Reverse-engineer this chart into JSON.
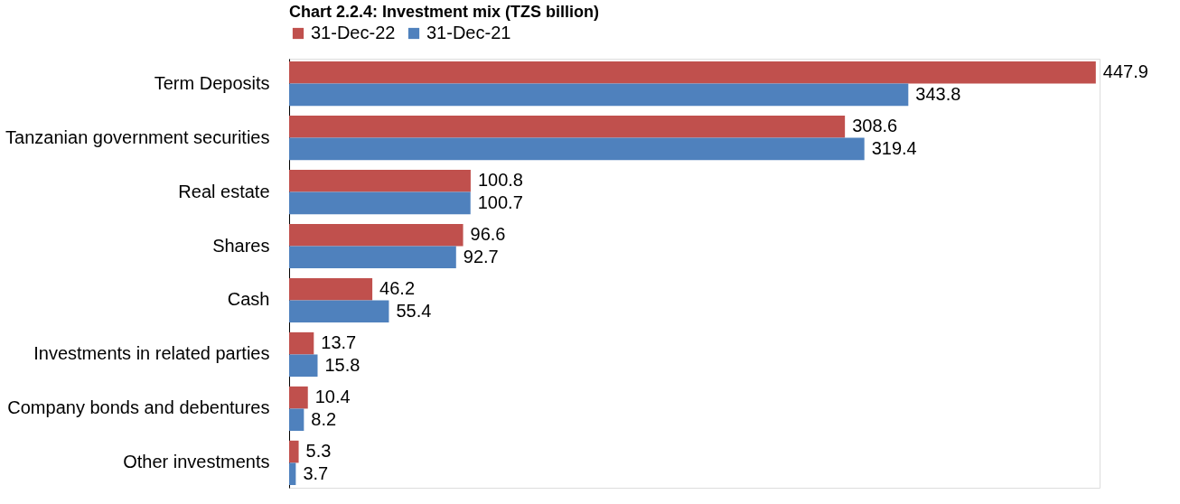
{
  "chart_data": {
    "type": "bar",
    "orientation": "horizontal",
    "title": "Chart 2.2.4: Investment mix (TZS billion)",
    "categories": [
      "Term Deposits",
      "Tanzanian government securities",
      "Real estate",
      "Shares",
      "Cash",
      "Investments in related parties",
      "Company bonds and debentures",
      "Other investments"
    ],
    "series": [
      {
        "name": "31-Dec-22",
        "color": "#c0504d",
        "values": [
          447.9,
          308.6,
          100.8,
          96.6,
          46.2,
          13.7,
          10.4,
          5.3
        ]
      },
      {
        "name": "31-Dec-21",
        "color": "#4f81bd",
        "values": [
          343.8,
          319.4,
          100.7,
          92.7,
          55.4,
          15.8,
          8.2,
          3.7
        ]
      }
    ],
    "data_labels": true,
    "legend": "top"
  }
}
